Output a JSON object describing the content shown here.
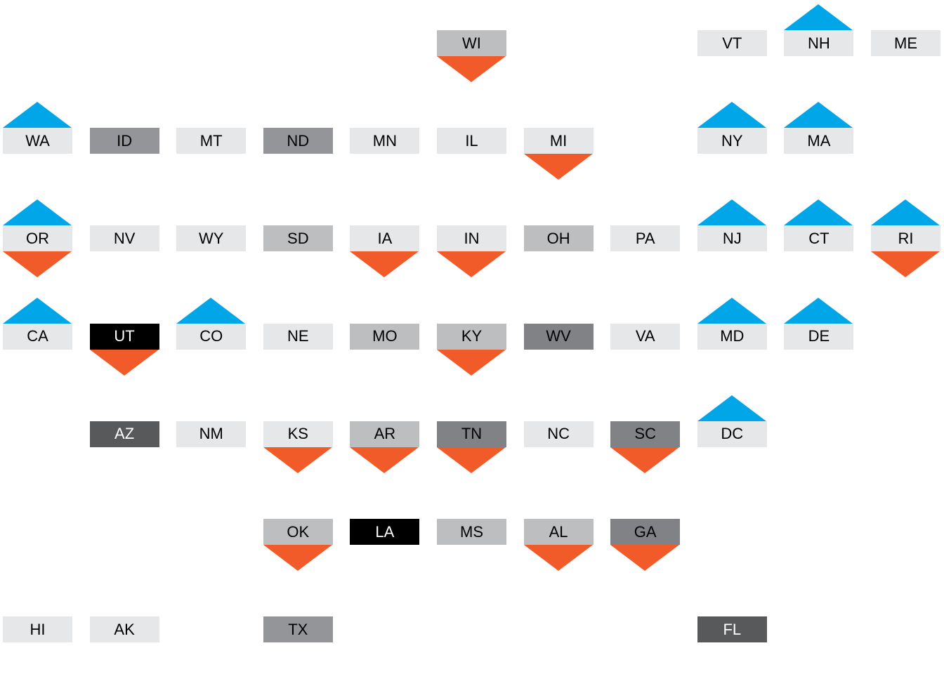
{
  "colors": {
    "up_arrow": "#00a6e8",
    "down_arrow": "#f15a29",
    "shades": {
      "lightest": "#e6e7e8",
      "light": "#bcbec0",
      "mid": "#939598",
      "dark": "#808285",
      "darker": "#58595b",
      "black": "#000000"
    }
  },
  "states": [
    {
      "abbr": "WI",
      "col": 5,
      "row": 0,
      "shade": "light",
      "up": false,
      "down": true
    },
    {
      "abbr": "VT",
      "col": 8,
      "row": 0,
      "shade": "lightest",
      "up": false,
      "down": false
    },
    {
      "abbr": "NH",
      "col": 9,
      "row": 0,
      "shade": "lightest",
      "up": true,
      "down": false
    },
    {
      "abbr": "ME",
      "col": 10,
      "row": 0,
      "shade": "lightest",
      "up": false,
      "down": false
    },
    {
      "abbr": "WA",
      "col": 0,
      "row": 1,
      "shade": "lightest",
      "up": true,
      "down": false
    },
    {
      "abbr": "ID",
      "col": 1,
      "row": 1,
      "shade": "mid",
      "up": false,
      "down": false
    },
    {
      "abbr": "MT",
      "col": 2,
      "row": 1,
      "shade": "lightest",
      "up": false,
      "down": false
    },
    {
      "abbr": "ND",
      "col": 3,
      "row": 1,
      "shade": "mid",
      "up": false,
      "down": false
    },
    {
      "abbr": "MN",
      "col": 4,
      "row": 1,
      "shade": "lightest",
      "up": false,
      "down": false
    },
    {
      "abbr": "IL",
      "col": 5,
      "row": 1,
      "shade": "lightest",
      "up": false,
      "down": false
    },
    {
      "abbr": "MI",
      "col": 6,
      "row": 1,
      "shade": "lightest",
      "up": false,
      "down": true
    },
    {
      "abbr": "NY",
      "col": 8,
      "row": 1,
      "shade": "lightest",
      "up": true,
      "down": false
    },
    {
      "abbr": "MA",
      "col": 9,
      "row": 1,
      "shade": "lightest",
      "up": true,
      "down": false
    },
    {
      "abbr": "OR",
      "col": 0,
      "row": 2,
      "shade": "lightest",
      "up": true,
      "down": true
    },
    {
      "abbr": "NV",
      "col": 1,
      "row": 2,
      "shade": "lightest",
      "up": false,
      "down": false
    },
    {
      "abbr": "WY",
      "col": 2,
      "row": 2,
      "shade": "lightest",
      "up": false,
      "down": false
    },
    {
      "abbr": "SD",
      "col": 3,
      "row": 2,
      "shade": "light",
      "up": false,
      "down": false
    },
    {
      "abbr": "IA",
      "col": 4,
      "row": 2,
      "shade": "lightest",
      "up": false,
      "down": true
    },
    {
      "abbr": "IN",
      "col": 5,
      "row": 2,
      "shade": "lightest",
      "up": false,
      "down": true
    },
    {
      "abbr": "OH",
      "col": 6,
      "row": 2,
      "shade": "light",
      "up": false,
      "down": false
    },
    {
      "abbr": "PA",
      "col": 7,
      "row": 2,
      "shade": "lightest",
      "up": false,
      "down": false
    },
    {
      "abbr": "NJ",
      "col": 8,
      "row": 2,
      "shade": "lightest",
      "up": true,
      "down": false
    },
    {
      "abbr": "CT",
      "col": 9,
      "row": 2,
      "shade": "lightest",
      "up": true,
      "down": false
    },
    {
      "abbr": "RI",
      "col": 10,
      "row": 2,
      "shade": "lightest",
      "up": true,
      "down": true
    },
    {
      "abbr": "CA",
      "col": 0,
      "row": 3,
      "shade": "lightest",
      "up": true,
      "down": false
    },
    {
      "abbr": "UT",
      "col": 1,
      "row": 3,
      "shade": "black",
      "up": false,
      "down": true
    },
    {
      "abbr": "CO",
      "col": 2,
      "row": 3,
      "shade": "lightest",
      "up": true,
      "down": false
    },
    {
      "abbr": "NE",
      "col": 3,
      "row": 3,
      "shade": "lightest",
      "up": false,
      "down": false
    },
    {
      "abbr": "MO",
      "col": 4,
      "row": 3,
      "shade": "light",
      "up": false,
      "down": false
    },
    {
      "abbr": "KY",
      "col": 5,
      "row": 3,
      "shade": "light",
      "up": false,
      "down": true
    },
    {
      "abbr": "WV",
      "col": 6,
      "row": 3,
      "shade": "dark",
      "up": false,
      "down": false
    },
    {
      "abbr": "VA",
      "col": 7,
      "row": 3,
      "shade": "lightest",
      "up": false,
      "down": false
    },
    {
      "abbr": "MD",
      "col": 8,
      "row": 3,
      "shade": "lightest",
      "up": true,
      "down": false
    },
    {
      "abbr": "DE",
      "col": 9,
      "row": 3,
      "shade": "lightest",
      "up": true,
      "down": false
    },
    {
      "abbr": "AZ",
      "col": 1,
      "row": 4,
      "shade": "darker",
      "up": false,
      "down": false
    },
    {
      "abbr": "NM",
      "col": 2,
      "row": 4,
      "shade": "lightest",
      "up": false,
      "down": false
    },
    {
      "abbr": "KS",
      "col": 3,
      "row": 4,
      "shade": "lightest",
      "up": false,
      "down": true
    },
    {
      "abbr": "AR",
      "col": 4,
      "row": 4,
      "shade": "light",
      "up": false,
      "down": true
    },
    {
      "abbr": "TN",
      "col": 5,
      "row": 4,
      "shade": "dark",
      "up": false,
      "down": true
    },
    {
      "abbr": "NC",
      "col": 6,
      "row": 4,
      "shade": "lightest",
      "up": false,
      "down": false
    },
    {
      "abbr": "SC",
      "col": 7,
      "row": 4,
      "shade": "dark",
      "up": false,
      "down": true
    },
    {
      "abbr": "DC",
      "col": 8,
      "row": 4,
      "shade": "lightest",
      "up": true,
      "down": false
    },
    {
      "abbr": "OK",
      "col": 3,
      "row": 5,
      "shade": "light",
      "up": false,
      "down": true
    },
    {
      "abbr": "LA",
      "col": 4,
      "row": 5,
      "shade": "black",
      "up": false,
      "down": false
    },
    {
      "abbr": "MS",
      "col": 5,
      "row": 5,
      "shade": "light",
      "up": false,
      "down": false
    },
    {
      "abbr": "AL",
      "col": 6,
      "row": 5,
      "shade": "light",
      "up": false,
      "down": true
    },
    {
      "abbr": "GA",
      "col": 7,
      "row": 5,
      "shade": "dark",
      "up": false,
      "down": true
    },
    {
      "abbr": "HI",
      "col": 0,
      "row": 6,
      "shade": "lightest",
      "up": false,
      "down": false
    },
    {
      "abbr": "AK",
      "col": 1,
      "row": 6,
      "shade": "lightest",
      "up": false,
      "down": false
    },
    {
      "abbr": "TX",
      "col": 3,
      "row": 6,
      "shade": "mid",
      "up": false,
      "down": false
    },
    {
      "abbr": "FL",
      "col": 8,
      "row": 6,
      "shade": "darker",
      "up": false,
      "down": false
    }
  ]
}
